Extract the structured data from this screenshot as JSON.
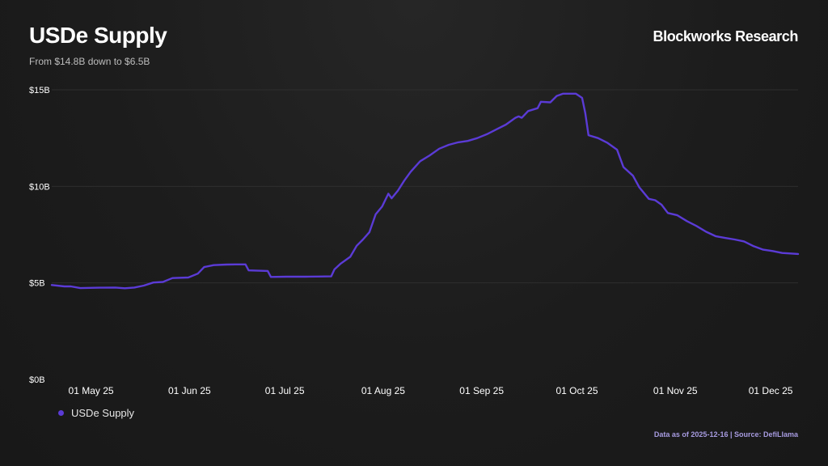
{
  "header": {
    "title": "USDe Supply",
    "subtitle": "From $14.8B down to $6.5B",
    "brand": "Blockworks Research"
  },
  "footer": {
    "source_note": "Data as of 2025-12-16 | Source: DefiLlama"
  },
  "colors": {
    "line": "#5b3bd6",
    "grid": "#2e2e2e",
    "axis_text": "#ffffff"
  },
  "chart_data": {
    "type": "line",
    "title": "USDe Supply",
    "subtitle": "From $14.8B down to $6.5B",
    "xlabel": "",
    "ylabel": "",
    "x_range": [
      "2025-04-25",
      "2025-12-16"
    ],
    "ylim": [
      0,
      15
    ],
    "y_ticks": [
      0,
      5,
      10,
      15
    ],
    "y_tick_labels": [
      "$0B",
      "$5B",
      "$10B",
      "$15B"
    ],
    "x_ticks": [
      "2025-05-01",
      "2025-06-01",
      "2025-07-01",
      "2025-08-01",
      "2025-09-01",
      "2025-10-01",
      "2025-11-01",
      "2025-12-01"
    ],
    "x_tick_labels": [
      "01 May 25",
      "01 Jun 25",
      "01 Jul 25",
      "01 Aug 25",
      "01 Sep 25",
      "01 Oct 25",
      "01 Nov 25",
      "01 Dec 25"
    ],
    "grid": "horizontal",
    "legend_position": "bottom-left",
    "series": [
      {
        "name": "USDe Supply",
        "unit": "$B",
        "points": [
          [
            "2025-04-25",
            4.89
          ],
          [
            "2025-04-29",
            4.82
          ],
          [
            "2025-05-01",
            4.82
          ],
          [
            "2025-05-04",
            4.73
          ],
          [
            "2025-05-10",
            4.75
          ],
          [
            "2025-05-15",
            4.76
          ],
          [
            "2025-05-18",
            4.72
          ],
          [
            "2025-05-21",
            4.76
          ],
          [
            "2025-05-24",
            4.86
          ],
          [
            "2025-05-27",
            5.02
          ],
          [
            "2025-05-30",
            5.05
          ],
          [
            "2025-06-02",
            5.25
          ],
          [
            "2025-06-07",
            5.28
          ],
          [
            "2025-06-10",
            5.48
          ],
          [
            "2025-06-12",
            5.82
          ],
          [
            "2025-06-15",
            5.92
          ],
          [
            "2025-06-19",
            5.95
          ],
          [
            "2025-06-22",
            5.96
          ],
          [
            "2025-06-25",
            5.96
          ],
          [
            "2025-06-26",
            5.65
          ],
          [
            "2025-07-02",
            5.62
          ],
          [
            "2025-07-03",
            5.31
          ],
          [
            "2025-07-08",
            5.32
          ],
          [
            "2025-07-14",
            5.32
          ],
          [
            "2025-07-18",
            5.33
          ],
          [
            "2025-07-22",
            5.34
          ],
          [
            "2025-07-23",
            5.7
          ],
          [
            "2025-07-25",
            6.0
          ],
          [
            "2025-07-28",
            6.35
          ],
          [
            "2025-07-30",
            6.92
          ],
          [
            "2025-08-01",
            7.25
          ],
          [
            "2025-08-03",
            7.62
          ],
          [
            "2025-08-05",
            8.55
          ],
          [
            "2025-08-07",
            8.95
          ],
          [
            "2025-08-09",
            9.62
          ],
          [
            "2025-08-10",
            9.38
          ],
          [
            "2025-08-12",
            9.78
          ],
          [
            "2025-08-14",
            10.3
          ],
          [
            "2025-08-16",
            10.75
          ],
          [
            "2025-08-19",
            11.3
          ],
          [
            "2025-08-22",
            11.6
          ],
          [
            "2025-08-25",
            11.95
          ],
          [
            "2025-08-28",
            12.15
          ],
          [
            "2025-08-31",
            12.28
          ],
          [
            "2025-09-03",
            12.35
          ],
          [
            "2025-09-06",
            12.5
          ],
          [
            "2025-09-09",
            12.7
          ],
          [
            "2025-09-12",
            12.95
          ],
          [
            "2025-09-15",
            13.2
          ],
          [
            "2025-09-18",
            13.55
          ],
          [
            "2025-09-19",
            13.62
          ],
          [
            "2025-09-20",
            13.55
          ],
          [
            "2025-09-22",
            13.9
          ],
          [
            "2025-09-25",
            14.05
          ],
          [
            "2025-09-26",
            14.38
          ],
          [
            "2025-09-29",
            14.35
          ],
          [
            "2025-10-01",
            14.68
          ],
          [
            "2025-10-03",
            14.8
          ],
          [
            "2025-10-07",
            14.8
          ],
          [
            "2025-10-09",
            14.58
          ],
          [
            "2025-10-10",
            13.8
          ],
          [
            "2025-10-11",
            12.65
          ],
          [
            "2025-10-14",
            12.5
          ],
          [
            "2025-10-17",
            12.25
          ],
          [
            "2025-10-20",
            11.9
          ],
          [
            "2025-10-22",
            11.0
          ],
          [
            "2025-10-25",
            10.55
          ],
          [
            "2025-10-27",
            9.95
          ],
          [
            "2025-10-30",
            9.35
          ],
          [
            "2025-11-01",
            9.28
          ],
          [
            "2025-11-03",
            9.05
          ],
          [
            "2025-11-05",
            8.62
          ],
          [
            "2025-11-08",
            8.5
          ],
          [
            "2025-11-11",
            8.2
          ],
          [
            "2025-11-14",
            7.95
          ],
          [
            "2025-11-17",
            7.65
          ],
          [
            "2025-11-20",
            7.42
          ],
          [
            "2025-11-23",
            7.33
          ],
          [
            "2025-11-26",
            7.25
          ],
          [
            "2025-11-29",
            7.15
          ],
          [
            "2025-12-02",
            6.9
          ],
          [
            "2025-12-05",
            6.72
          ],
          [
            "2025-12-08",
            6.65
          ],
          [
            "2025-12-11",
            6.55
          ],
          [
            "2025-12-16",
            6.5
          ]
        ]
      }
    ]
  }
}
